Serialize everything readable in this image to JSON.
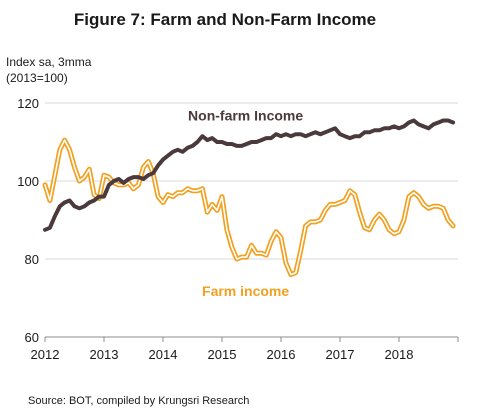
{
  "chart_data": {
    "type": "line",
    "title": "Figure 7: Farm and Non-Farm Income",
    "ylabel_lines": [
      "Index sa, 3mma",
      "(2013=100)"
    ],
    "y_ticks": [
      "60",
      "80",
      "100",
      "120"
    ],
    "ylim": [
      60,
      120
    ],
    "x_ticks": [
      "2012",
      "2013",
      "2014",
      "2015",
      "2016",
      "2017",
      "2018"
    ],
    "xlim": [
      2012,
      2019
    ],
    "grid": "horizontal",
    "source": "Source: BOT, compiled by Krungsri Research",
    "series": [
      {
        "name": "Non-farm Income",
        "color": "#4a3a3c",
        "style": "thick",
        "x": [
          2012.0,
          2012.083,
          2012.167,
          2012.25,
          2012.333,
          2012.417,
          2012.5,
          2012.583,
          2012.667,
          2012.75,
          2012.833,
          2012.917,
          2013.0,
          2013.083,
          2013.167,
          2013.25,
          2013.333,
          2013.417,
          2013.5,
          2013.583,
          2013.667,
          2013.75,
          2013.833,
          2013.917,
          2014.0,
          2014.083,
          2014.167,
          2014.25,
          2014.333,
          2014.417,
          2014.5,
          2014.583,
          2014.667,
          2014.75,
          2014.833,
          2014.917,
          2015.0,
          2015.083,
          2015.167,
          2015.25,
          2015.333,
          2015.417,
          2015.5,
          2015.583,
          2015.667,
          2015.75,
          2015.833,
          2015.917,
          2016.0,
          2016.083,
          2016.167,
          2016.25,
          2016.333,
          2016.417,
          2016.5,
          2016.583,
          2016.667,
          2016.75,
          2016.833,
          2016.917,
          2017.0,
          2017.083,
          2017.167,
          2017.25,
          2017.333,
          2017.417,
          2017.5,
          2017.583,
          2017.667,
          2017.75,
          2017.833,
          2017.917,
          2018.0,
          2018.083,
          2018.167,
          2018.25,
          2018.333,
          2018.417,
          2018.5,
          2018.583,
          2018.667,
          2018.75,
          2018.833,
          2018.917
        ],
        "values": [
          87.5,
          88.0,
          91.0,
          93.5,
          94.5,
          95.0,
          93.5,
          93.0,
          93.5,
          94.5,
          95.0,
          96.0,
          96.0,
          99.0,
          100.0,
          100.5,
          99.5,
          100.5,
          101.0,
          101.0,
          100.5,
          101.5,
          102.0,
          104.0,
          105.5,
          106.5,
          107.5,
          108.0,
          107.5,
          108.5,
          109.0,
          110.0,
          111.5,
          110.5,
          111.0,
          110.0,
          110.0,
          109.5,
          109.5,
          109.0,
          109.0,
          109.5,
          110.0,
          110.0,
          110.5,
          111.0,
          111.0,
          112.0,
          111.5,
          112.0,
          111.5,
          112.0,
          112.0,
          111.5,
          112.0,
          112.5,
          112.0,
          112.5,
          113.0,
          113.5,
          112.0,
          111.5,
          111.0,
          111.5,
          111.5,
          112.5,
          112.5,
          113.0,
          113.0,
          113.5,
          113.5,
          114.0,
          113.5,
          114.0,
          115.0,
          115.5,
          114.5,
          114.0,
          113.5,
          114.5,
          115.0,
          115.5,
          115.5,
          115.0
        ]
      },
      {
        "name": "Farm income",
        "color": "#f2a020",
        "style": "double",
        "x": [
          2012.0,
          2012.083,
          2012.167,
          2012.25,
          2012.333,
          2012.417,
          2012.5,
          2012.583,
          2012.667,
          2012.75,
          2012.833,
          2012.917,
          2013.0,
          2013.083,
          2013.167,
          2013.25,
          2013.333,
          2013.417,
          2013.5,
          2013.583,
          2013.667,
          2013.75,
          2013.833,
          2013.917,
          2014.0,
          2014.083,
          2014.167,
          2014.25,
          2014.333,
          2014.417,
          2014.5,
          2014.583,
          2014.667,
          2014.75,
          2014.833,
          2014.917,
          2015.0,
          2015.083,
          2015.167,
          2015.25,
          2015.333,
          2015.417,
          2015.5,
          2015.583,
          2015.667,
          2015.75,
          2015.833,
          2015.917,
          2016.0,
          2016.083,
          2016.167,
          2016.25,
          2016.333,
          2016.417,
          2016.5,
          2016.583,
          2016.667,
          2016.75,
          2016.833,
          2016.917,
          2017.0,
          2017.083,
          2017.167,
          2017.25,
          2017.333,
          2017.417,
          2017.5,
          2017.583,
          2017.667,
          2017.75,
          2017.833,
          2017.917,
          2018.0,
          2018.083,
          2018.167,
          2018.25,
          2018.333,
          2018.417,
          2018.5,
          2018.583,
          2018.667,
          2018.75,
          2018.833,
          2018.917
        ],
        "values": [
          99.0,
          95.0,
          101.5,
          108.0,
          110.5,
          108.0,
          103.5,
          100.0,
          101.0,
          103.0,
          96.5,
          95.5,
          101.5,
          101.0,
          99.5,
          99.0,
          99.0,
          99.5,
          98.0,
          99.0,
          103.5,
          105.0,
          102.0,
          96.0,
          94.5,
          96.5,
          96.0,
          97.0,
          97.0,
          98.0,
          97.5,
          97.5,
          98.0,
          92.0,
          94.0,
          92.5,
          96.0,
          87.5,
          83.0,
          80.0,
          80.5,
          80.5,
          83.5,
          81.5,
          81.5,
          81.0,
          84.5,
          87.0,
          85.5,
          79.0,
          76.0,
          76.5,
          82.0,
          88.5,
          89.5,
          89.5,
          90.0,
          92.5,
          94.0,
          94.0,
          94.5,
          95.0,
          97.5,
          96.5,
          92.0,
          88.0,
          87.5,
          90.0,
          91.5,
          90.0,
          87.5,
          86.5,
          87.0,
          90.0,
          96.0,
          97.0,
          96.0,
          94.0,
          93.0,
          93.5,
          93.5,
          93.0,
          90.0,
          88.5
        ]
      }
    ],
    "annotations": [
      {
        "text": "Non-farm Income",
        "series": 0,
        "x": 2015.4,
        "y": 115.5
      },
      {
        "text": "Farm income",
        "series": 1,
        "x": 2015.4,
        "y": 70.5
      }
    ]
  }
}
